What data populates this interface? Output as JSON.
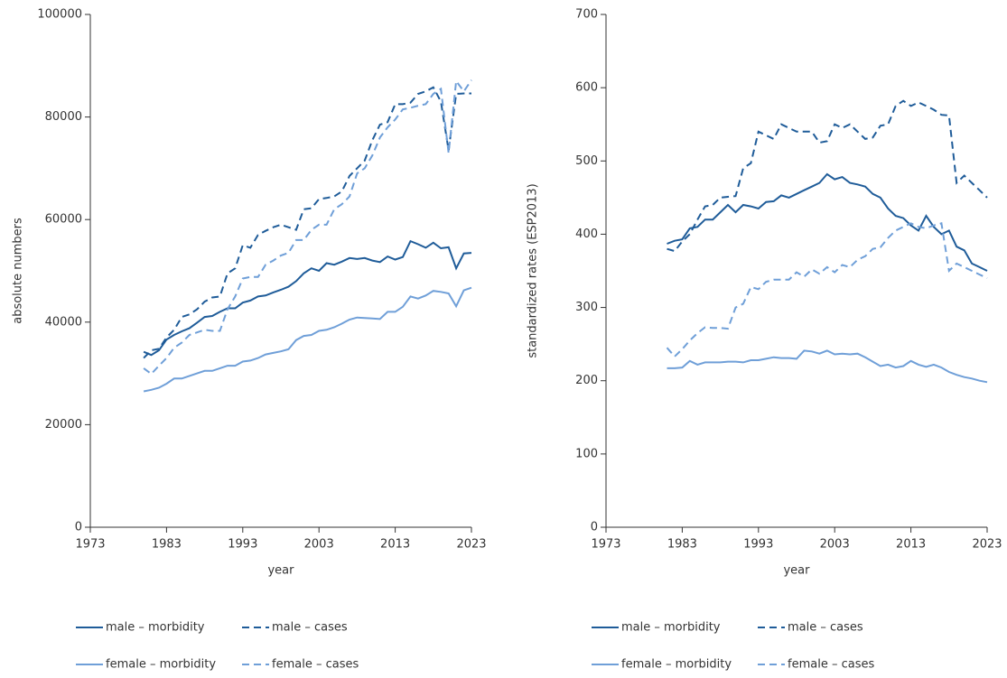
{
  "chart_data": [
    {
      "type": "line",
      "xlabel": "year",
      "ylabel": "absolute numbers",
      "xlim": [
        1973,
        2023
      ],
      "xticks": [
        1973,
        1983,
        1993,
        2003,
        2013,
        2023
      ],
      "ylim": [
        0,
        100000
      ],
      "yticks": [
        0,
        20000,
        40000,
        60000,
        80000,
        100000
      ],
      "x": [
        1980,
        1981,
        1982,
        1983,
        1984,
        1985,
        1986,
        1987,
        1988,
        1989,
        1990,
        1991,
        1992,
        1993,
        1994,
        1995,
        1996,
        1997,
        1998,
        1999,
        2000,
        2001,
        2002,
        2003,
        2004,
        2005,
        2006,
        2007,
        2008,
        2009,
        2010,
        2011,
        2012,
        2013,
        2014,
        2015,
        2016,
        2017,
        2018,
        2019,
        2020,
        2021,
        2022,
        2023
      ],
      "series": [
        {
          "name": "male – morbidity",
          "color": "#1f5c99",
          "dash": "solid",
          "values": [
            34200,
            33600,
            34500,
            36600,
            37500,
            38200,
            38800,
            39900,
            41000,
            41200,
            42000,
            42700,
            42700,
            43800,
            44200,
            45000,
            45200,
            45800,
            46300,
            46900,
            48000,
            49500,
            50500,
            50000,
            51500,
            51200,
            51800,
            52500,
            52300,
            52500,
            52000,
            51700,
            52800,
            52200,
            52700,
            55800,
            55200,
            54500,
            55500,
            54400,
            54600,
            50500,
            53400,
            53500
          ]
        },
        {
          "name": "male – cases",
          "color": "#1f5c99",
          "dash": "dashed",
          "values": [
            33000,
            34500,
            34800,
            37000,
            38500,
            41000,
            41500,
            42500,
            44000,
            44800,
            45000,
            49500,
            50500,
            55000,
            54500,
            57000,
            57800,
            58500,
            59000,
            58500,
            58000,
            62000,
            62200,
            64000,
            64200,
            64500,
            65500,
            68500,
            70000,
            71500,
            75500,
            78500,
            79000,
            82500,
            82500,
            82800,
            84500,
            85000,
            85800,
            83000,
            73500,
            84500,
            84600,
            84600
          ]
        },
        {
          "name": "female – morbidity",
          "color": "#6f9fd8",
          "dash": "solid",
          "values": [
            26500,
            26800,
            27200,
            28000,
            29000,
            29000,
            29500,
            30000,
            30500,
            30500,
            31000,
            31500,
            31500,
            32300,
            32500,
            33000,
            33700,
            34000,
            34300,
            34700,
            36500,
            37300,
            37500,
            38300,
            38500,
            39000,
            39700,
            40500,
            40900,
            40800,
            40700,
            40600,
            42000,
            42000,
            43000,
            45000,
            44600,
            45200,
            46100,
            45900,
            45600,
            43100,
            46200,
            46700
          ]
        },
        {
          "name": "female – cases",
          "color": "#6f9fd8",
          "dash": "dashed",
          "values": [
            31000,
            29900,
            31500,
            33000,
            35000,
            36000,
            37500,
            38000,
            38500,
            38300,
            38300,
            42500,
            45000,
            48500,
            48800,
            48800,
            51200,
            52000,
            53000,
            53500,
            56000,
            56000,
            58000,
            59000,
            59000,
            62000,
            63000,
            64500,
            69000,
            70000,
            72500,
            76000,
            78000,
            79500,
            81500,
            81800,
            82200,
            82500,
            84500,
            85500,
            73000,
            87000,
            85000,
            87200
          ]
        }
      ]
    },
    {
      "type": "line",
      "xlabel": "year",
      "ylabel": "standardized rates (ESP2013)",
      "xlim": [
        1973,
        2023
      ],
      "xticks": [
        1973,
        1983,
        1993,
        2003,
        2013,
        2023
      ],
      "ylim": [
        0,
        700
      ],
      "yticks": [
        0,
        100,
        200,
        300,
        400,
        500,
        600,
        700
      ],
      "x": [
        1981,
        1982,
        1983,
        1984,
        1985,
        1986,
        1987,
        1988,
        1989,
        1990,
        1991,
        1992,
        1993,
        1994,
        1995,
        1996,
        1997,
        1998,
        1999,
        2000,
        2001,
        2002,
        2003,
        2004,
        2005,
        2006,
        2007,
        2008,
        2009,
        2010,
        2011,
        2012,
        2013,
        2014,
        2015,
        2016,
        2017,
        2018,
        2019,
        2020,
        2021,
        2022,
        2023
      ],
      "series": [
        {
          "name": "male – morbidity",
          "color": "#1f5c99",
          "dash": "solid",
          "values": [
            387,
            391,
            393,
            408,
            410,
            420,
            420,
            430,
            440,
            430,
            440,
            438,
            435,
            444,
            445,
            453,
            450,
            455,
            460,
            465,
            470,
            482,
            475,
            478,
            470,
            468,
            465,
            455,
            450,
            435,
            425,
            422,
            412,
            405,
            425,
            410,
            400,
            405,
            383,
            378,
            360,
            355,
            350
          ]
        },
        {
          "name": "male – cases",
          "color": "#1f5c99",
          "dash": "dashed",
          "values": [
            380,
            377,
            390,
            400,
            420,
            438,
            440,
            450,
            451,
            452,
            490,
            497,
            540,
            535,
            530,
            550,
            545,
            540,
            540,
            540,
            525,
            527,
            550,
            545,
            550,
            540,
            530,
            532,
            548,
            550,
            575,
            582,
            575,
            580,
            575,
            570,
            563,
            562,
            470,
            480,
            470,
            460,
            450
          ]
        },
        {
          "name": "female – morbidity",
          "color": "#6f9fd8",
          "dash": "solid",
          "values": [
            217,
            217,
            218,
            227,
            222,
            225,
            225,
            225,
            226,
            226,
            225,
            228,
            228,
            230,
            232,
            231,
            231,
            230,
            241,
            240,
            237,
            241,
            236,
            237,
            236,
            237,
            232,
            226,
            220,
            222,
            218,
            220,
            227,
            222,
            219,
            222,
            218,
            212,
            208,
            205,
            203,
            200,
            198
          ]
        },
        {
          "name": "female – cases",
          "color": "#6f9fd8",
          "dash": "dashed",
          "values": [
            245,
            233,
            243,
            255,
            265,
            273,
            272,
            272,
            271,
            300,
            305,
            328,
            325,
            335,
            338,
            338,
            338,
            348,
            342,
            352,
            346,
            355,
            348,
            358,
            355,
            365,
            370,
            380,
            382,
            395,
            405,
            410,
            415,
            410,
            408,
            412,
            415,
            350,
            360,
            355,
            350,
            345,
            340
          ]
        }
      ]
    }
  ]
}
